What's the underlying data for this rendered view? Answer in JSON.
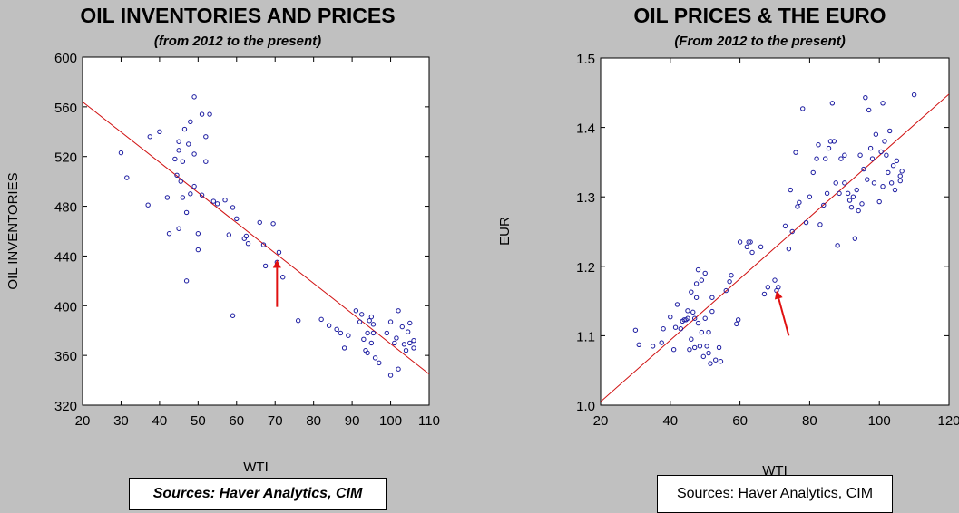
{
  "charts": [
    {
      "title": "OIL INVENTORIES AND PRICES",
      "subtitle": "(from 2012 to the present)",
      "source": "Sources:  Haver Analytics, CIM"
    },
    {
      "title": "OIL PRICES & THE EURO",
      "subtitle": "(From 2012 to the present)",
      "source": "Sources:  Haver Analytics, CIM"
    }
  ],
  "colors": {
    "background": "#c0c0c0",
    "plot_area": "#ffffff",
    "points": "#1a1aa0",
    "fit_line": "#d01010",
    "arrow": "#e01010"
  },
  "chart_data": [
    {
      "type": "scatter",
      "title": "OIL INVENTORIES AND PRICES",
      "xlabel": "WTI",
      "ylabel": "OIL INVENTORIES",
      "xlim": [
        20,
        110
      ],
      "ylim": [
        320,
        600
      ],
      "xticks": [
        20,
        30,
        40,
        50,
        60,
        70,
        80,
        90,
        100,
        110
      ],
      "yticks": [
        320,
        360,
        400,
        440,
        480,
        520,
        560,
        600
      ],
      "fit_line": [
        [
          20,
          564
        ],
        [
          110,
          345
        ]
      ],
      "arrow": {
        "from": [
          70.5,
          399
        ],
        "to": [
          70.5,
          437
        ]
      },
      "points": [
        [
          30,
          523
        ],
        [
          31.5,
          503
        ],
        [
          37,
          481
        ],
        [
          37.5,
          536
        ],
        [
          40,
          540
        ],
        [
          42,
          487
        ],
        [
          42.5,
          458
        ],
        [
          44,
          518
        ],
        [
          44.5,
          505
        ],
        [
          45,
          532
        ],
        [
          45,
          525
        ],
        [
          45,
          462
        ],
        [
          45.5,
          500
        ],
        [
          46,
          516
        ],
        [
          46,
          487
        ],
        [
          46.5,
          542
        ],
        [
          47,
          420
        ],
        [
          47,
          475
        ],
        [
          47.5,
          530
        ],
        [
          48,
          490
        ],
        [
          48,
          548
        ],
        [
          49,
          568
        ],
        [
          49,
          522
        ],
        [
          49,
          496
        ],
        [
          50,
          445
        ],
        [
          50,
          458
        ],
        [
          51,
          554
        ],
        [
          51,
          489
        ],
        [
          52,
          516
        ],
        [
          52,
          536
        ],
        [
          53,
          554
        ],
        [
          54,
          484
        ],
        [
          55,
          482
        ],
        [
          57,
          485
        ],
        [
          58,
          457
        ],
        [
          59,
          479
        ],
        [
          59,
          392
        ],
        [
          60,
          470
        ],
        [
          62,
          454
        ],
        [
          62.5,
          456
        ],
        [
          63,
          450
        ],
        [
          66,
          467
        ],
        [
          67,
          449
        ],
        [
          67.5,
          432
        ],
        [
          69.5,
          466
        ],
        [
          70.5,
          435
        ],
        [
          71,
          443
        ],
        [
          72,
          423
        ],
        [
          76,
          388
        ],
        [
          82,
          389
        ],
        [
          84,
          384
        ],
        [
          86,
          381
        ],
        [
          87,
          378
        ],
        [
          88,
          366
        ],
        [
          89,
          376
        ],
        [
          91,
          396
        ],
        [
          92,
          387
        ],
        [
          92.5,
          393
        ],
        [
          93,
          373
        ],
        [
          93.5,
          364
        ],
        [
          94,
          362
        ],
        [
          94,
          378
        ],
        [
          94.5,
          388
        ],
        [
          95,
          370
        ],
        [
          95,
          391
        ],
        [
          95.5,
          385
        ],
        [
          95.5,
          378
        ],
        [
          96,
          358
        ],
        [
          97,
          354
        ],
        [
          99,
          378
        ],
        [
          100,
          344
        ],
        [
          100,
          387
        ],
        [
          101,
          370
        ],
        [
          101.5,
          374
        ],
        [
          102,
          396
        ],
        [
          102,
          349
        ],
        [
          103,
          383
        ],
        [
          103.5,
          369
        ],
        [
          104,
          364
        ],
        [
          104.5,
          379
        ],
        [
          105,
          386
        ],
        [
          105,
          370
        ],
        [
          106,
          366
        ],
        [
          106,
          372
        ]
      ]
    },
    {
      "type": "scatter",
      "title": "OIL PRICES & THE EURO",
      "xlabel": "WTI",
      "ylabel": "EUR",
      "xlim": [
        20,
        120
      ],
      "ylim": [
        1.0,
        1.5
      ],
      "xticks": [
        20,
        40,
        60,
        80,
        100,
        120
      ],
      "yticks": [
        1.0,
        1.1,
        1.2,
        1.3,
        1.4,
        1.5
      ],
      "fit_line": [
        [
          20,
          1.005
        ],
        [
          120,
          1.448
        ]
      ],
      "arrow": {
        "from": [
          74,
          1.1
        ],
        "to": [
          70.5,
          1.165
        ]
      },
      "points": [
        [
          30,
          1.108
        ],
        [
          31,
          1.087
        ],
        [
          35,
          1.085
        ],
        [
          37.5,
          1.09
        ],
        [
          38,
          1.11
        ],
        [
          40,
          1.127
        ],
        [
          41,
          1.08
        ],
        [
          41.5,
          1.112
        ],
        [
          42,
          1.145
        ],
        [
          43,
          1.11
        ],
        [
          43.5,
          1.121
        ],
        [
          44,
          1.123
        ],
        [
          44.5,
          1.123
        ],
        [
          45,
          1.125
        ],
        [
          45,
          1.136
        ],
        [
          45.5,
          1.08
        ],
        [
          46,
          1.095
        ],
        [
          46,
          1.163
        ],
        [
          46.5,
          1.134
        ],
        [
          47,
          1.083
        ],
        [
          47,
          1.125
        ],
        [
          47.5,
          1.155
        ],
        [
          47.5,
          1.175
        ],
        [
          48,
          1.118
        ],
        [
          48,
          1.195
        ],
        [
          48.5,
          1.085
        ],
        [
          49,
          1.105
        ],
        [
          49,
          1.18
        ],
        [
          49.5,
          1.07
        ],
        [
          50,
          1.125
        ],
        [
          50,
          1.19
        ],
        [
          50.5,
          1.085
        ],
        [
          51,
          1.105
        ],
        [
          51,
          1.075
        ],
        [
          51.5,
          1.06
        ],
        [
          52,
          1.155
        ],
        [
          52,
          1.135
        ],
        [
          53,
          1.065
        ],
        [
          54,
          1.083
        ],
        [
          54.5,
          1.063
        ],
        [
          56,
          1.165
        ],
        [
          57,
          1.178
        ],
        [
          57.5,
          1.187
        ],
        [
          59,
          1.117
        ],
        [
          59.5,
          1.123
        ],
        [
          60,
          1.235
        ],
        [
          62,
          1.228
        ],
        [
          62.5,
          1.235
        ],
        [
          63,
          1.235
        ],
        [
          63.5,
          1.22
        ],
        [
          66,
          1.228
        ],
        [
          67,
          1.16
        ],
        [
          68,
          1.17
        ],
        [
          70,
          1.18
        ],
        [
          70.5,
          1.165
        ],
        [
          71,
          1.17
        ],
        [
          73,
          1.258
        ],
        [
          74,
          1.225
        ],
        [
          74.5,
          1.31
        ],
        [
          75,
          1.25
        ],
        [
          76,
          1.364
        ],
        [
          76.5,
          1.286
        ],
        [
          77,
          1.292
        ],
        [
          78,
          1.427
        ],
        [
          79,
          1.263
        ],
        [
          80,
          1.3
        ],
        [
          81,
          1.335
        ],
        [
          82,
          1.355
        ],
        [
          82.5,
          1.375
        ],
        [
          83,
          1.26
        ],
        [
          84,
          1.288
        ],
        [
          84.5,
          1.355
        ],
        [
          85,
          1.305
        ],
        [
          85.5,
          1.37
        ],
        [
          86,
          1.38
        ],
        [
          86.5,
          1.435
        ],
        [
          87,
          1.38
        ],
        [
          87.5,
          1.32
        ],
        [
          88,
          1.23
        ],
        [
          88.5,
          1.305
        ],
        [
          89,
          1.355
        ],
        [
          90,
          1.36
        ],
        [
          90,
          1.32
        ],
        [
          91,
          1.305
        ],
        [
          91.5,
          1.295
        ],
        [
          92,
          1.285
        ],
        [
          92.5,
          1.3
        ],
        [
          93,
          1.24
        ],
        [
          93.5,
          1.31
        ],
        [
          94,
          1.28
        ],
        [
          94.5,
          1.36
        ],
        [
          95,
          1.29
        ],
        [
          95.5,
          1.34
        ],
        [
          96,
          1.443
        ],
        [
          96.5,
          1.325
        ],
        [
          97,
          1.425
        ],
        [
          97.5,
          1.37
        ],
        [
          98,
          1.355
        ],
        [
          98.5,
          1.32
        ],
        [
          99,
          1.39
        ],
        [
          100,
          1.293
        ],
        [
          100.5,
          1.365
        ],
        [
          101,
          1.435
        ],
        [
          101,
          1.315
        ],
        [
          101.5,
          1.38
        ],
        [
          102,
          1.36
        ],
        [
          102.5,
          1.335
        ],
        [
          103,
          1.395
        ],
        [
          103.5,
          1.32
        ],
        [
          104,
          1.345
        ],
        [
          104.5,
          1.31
        ],
        [
          105,
          1.352
        ],
        [
          106,
          1.33
        ],
        [
          106,
          1.323
        ],
        [
          106.5,
          1.337
        ],
        [
          110,
          1.447
        ]
      ]
    }
  ]
}
